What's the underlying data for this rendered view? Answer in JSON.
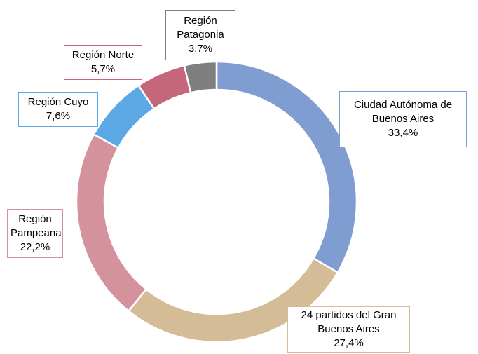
{
  "chart_data": {
    "type": "donut",
    "categories": [
      "Ciudad Autónoma de Buenos Aires",
      "24 partidos del Gran Buenos Aires",
      "Región Pampeana",
      "Región Cuyo",
      "Región Norte",
      "Región Patagonia"
    ],
    "values": [
      33.4,
      27.4,
      22.2,
      7.6,
      5.7,
      3.7
    ],
    "value_labels": [
      "33,4%",
      "27,4%",
      "22,2%",
      "7,6%",
      "5,7%",
      "3,7%"
    ],
    "colors": [
      "#7f9dd0",
      "#d3bc96",
      "#d4929c",
      "#5aa9e6",
      "#c5677a",
      "#7f7f7f"
    ]
  }
}
